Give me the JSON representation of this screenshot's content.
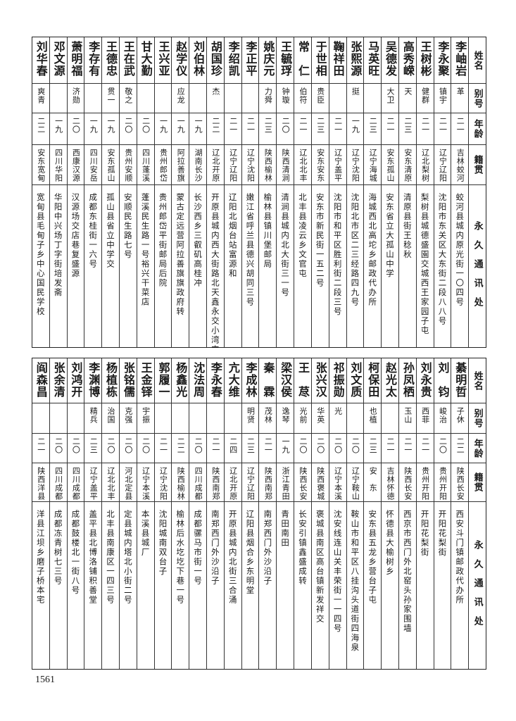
{
  "header": {
    "name": "姓名",
    "alias": "别号",
    "age": "年龄",
    "origin": "籍贯",
    "address": "永久通讯处"
  },
  "tables": [
    {
      "rows": [
        {
          "name": "李岫岩",
          "alias": "革",
          "age": "二一",
          "origin": "吉林蛟河",
          "address": "蛟河县城内原光街一〇四号"
        },
        {
          "name": "李永聚",
          "alias": "镇宇",
          "age": "二一",
          "origin": "辽宁辽阳",
          "address": "沈阳市东关区大东街二段八八号"
        },
        {
          "name": "王树彬",
          "alias": "健群",
          "age": "二一",
          "origin": "辽北梨树",
          "address": "梨树县城德盛園交城西王家园子屯"
        },
        {
          "name": "高秀嵘",
          "alias": "天",
          "age": "二三",
          "origin": "安东清原",
          "address": "清原县街王稔秋"
        },
        {
          "name": "吴德发",
          "alias": "大卫",
          "age": "二一",
          "origin": "安东孤山",
          "address": "安东省立大孤山中学"
        },
        {
          "name": "马英旺",
          "alias": "",
          "age": "二三",
          "origin": "辽宁海城",
          "address": "海城西北高坨乡邮政代办所"
        },
        {
          "name": "张熙源",
          "alias": "挺",
          "age": "一九",
          "origin": "辽宁沈阳",
          "address": "沈阳北市区二三经路四九号"
        },
        {
          "name": "鞠祥田",
          "alias": "",
          "age": "二一",
          "origin": "辽宁盖平",
          "address": "沈阳市和平区胜利街二段三号"
        },
        {
          "name": "于世相",
          "alias": "贵臣",
          "age": "二三",
          "origin": "安东安东",
          "address": "安东市新民街一五二号"
        },
        {
          "name": "常　仁",
          "alias": "伯符",
          "age": "二一",
          "origin": "辽北北丰",
          "address": "北丰县凌云乡文官屯"
        },
        {
          "name": "王毓琈",
          "alias": "钟璇",
          "age": "二〇",
          "origin": "陕西清涧",
          "address": "清涧县城内北大街三一号"
        },
        {
          "name": "姚庆元",
          "alias": "力舜",
          "age": "二三",
          "origin": "陕西榆林",
          "address": "榆林县镇川堡邮局"
        },
        {
          "name": "李正平",
          "alias": "",
          "age": "二一",
          "origin": "辽宁沈阳",
          "address": "嫩江省呼兰县德兴胡同三号"
        },
        {
          "name": "李绍凯",
          "alias": "",
          "age": "二一",
          "origin": "辽宁辽阳",
          "address": "辽阳北烟台站富源和"
        },
        {
          "name": "胡国珍",
          "alias": "杰",
          "age": "二二",
          "origin": "辽北开原",
          "address": "开原县城内西大街路北天鑫永交小湾屯"
        },
        {
          "name": "刘伯林",
          "alias": "",
          "age": "一九",
          "origin": "湖南长沙",
          "address": "长沙西乡三叡矶高桂冲"
        },
        {
          "name": "赵学仪",
          "alias": "应龙",
          "age": "一九",
          "origin": "阿拉善旗",
          "address": "蒙古定远营阿拉善旗旗政府转"
        },
        {
          "name": "王兴亚",
          "alias": "",
          "age": "一九",
          "origin": "贵州郎岱",
          "address": "贵州郎岱平街邮局后院"
        },
        {
          "name": "甘大勤",
          "alias": "",
          "age": "二〇",
          "origin": "四川蓬溪",
          "address": "蓬溪民生路一号裕兴干菜店"
        },
        {
          "name": "王在武",
          "alias": "敬之",
          "age": "二〇",
          "origin": "贵州安顺",
          "address": "安顺民生路七号"
        },
        {
          "name": "王德忠",
          "alias": "贯一",
          "age": "一九",
          "origin": "安东孤山",
          "address": "孤山县省立中学交"
        },
        {
          "name": "李存有",
          "alias": "",
          "age": "一九",
          "origin": "四川安岳",
          "address": "成都东桂街一六号"
        },
        {
          "name": "萧明福",
          "alias": "济勋",
          "age": "二〇",
          "origin": "西康汉源",
          "address": "汉源场交店巷复盛源"
        },
        {
          "name": "邓文源",
          "alias": "",
          "age": "一九",
          "origin": "四川华阳",
          "address": "华阳中兴场丁字街培发斋"
        },
        {
          "name": "刘华春",
          "alias": "爽青",
          "age": "二二",
          "origin": "安东宽甸",
          "address": "宽甸县毛甸子乡中心国民学校"
        }
      ]
    },
    {
      "rows": [
        {
          "name": "綦明哲",
          "alias": "子休",
          "age": "二二",
          "origin": "陕西长安",
          "address": "西安斗门镇邮政代办所"
        },
        {
          "name": "刘　钧",
          "alias": "峻治",
          "age": "二〇",
          "origin": "贵州开阳",
          "address": "开阳花梨街"
        },
        {
          "name": "刘永贵",
          "alias": "西菲",
          "age": "二一",
          "origin": "贵州开阳",
          "address": "开阳花梨街"
        },
        {
          "name": "孙凤栖",
          "alias": "玉山",
          "age": "二一",
          "origin": "陕西长安",
          "address": "西京市西门外北窑头孙家围墙"
        },
        {
          "name": "赵光太",
          "alias": "",
          "age": "二一",
          "origin": "吉林怀德",
          "address": "怀德县大榆树乡"
        },
        {
          "name": "柯保田",
          "alias": "也植",
          "age": "二三",
          "origin": "安　东",
          "address": "安东县五龙乡营台子屯"
        },
        {
          "name": "刘文质",
          "alias": "",
          "age": "二〇",
          "origin": "辽宁鞍山",
          "address": "鞍山市和平区八挂沟头道街四海泉"
        },
        {
          "name": "祁振勋",
          "alias": "光",
          "age": "二〇",
          "origin": "辽宁本溪",
          "address": "沈安线连山关丰荣街一一四号"
        },
        {
          "name": "张兴汉",
          "alias": "华英",
          "age": "二〇",
          "origin": "陕西褒城",
          "address": "褒城县南区高台镇新发祥交"
        },
        {
          "name": "王　荩",
          "alias": "光前",
          "age": "二〇",
          "origin": "陕西长安",
          "address": "长安引镇鑫盛成转"
        },
        {
          "name": "梁汉侯",
          "alias": "逸琴",
          "age": "一九",
          "origin": "浙江青田",
          "address": "青田南田"
        },
        {
          "name": "秦　霖",
          "alias": "茂林",
          "age": "二一",
          "origin": "陕西南郑",
          "address": "南郑西门外沙沿子"
        },
        {
          "name": "李成林",
          "alias": "明贤",
          "age": "二三",
          "origin": "辽宁辽阳",
          "address": "辽阳县烟合乡东明堂"
        },
        {
          "name": "亢大维",
          "alias": "",
          "age": "二四",
          "origin": "辽北开原",
          "address": "开原县城内北街三合涌"
        },
        {
          "name": "李永春",
          "alias": "",
          "age": "二一",
          "origin": "陕西南郑",
          "address": "南郑西门外沙沿子"
        },
        {
          "name": "沈法周",
          "alias": "",
          "age": "二〇",
          "origin": "四川成都",
          "address": "成都骡马市街一号"
        },
        {
          "name": "杨鑫光",
          "alias": "",
          "age": "二二",
          "origin": "陕西榆林",
          "address": "榆林后水圪圪下巷一号"
        },
        {
          "name": "郭履一",
          "alias": "",
          "age": "二一",
          "origin": "辽宁沈阳",
          "address": "沈阳城南双台子"
        },
        {
          "name": "王金铎",
          "alias": "宇振",
          "age": "二〇",
          "origin": "辽宁本溪",
          "address": "本溪县城厂"
        },
        {
          "name": "张铭儒",
          "alias": "克强",
          "age": "二〇",
          "origin": "河北定县",
          "address": "定县城内塔北小街二号"
        },
        {
          "name": "杨植栋",
          "alias": "治国",
          "age": "二〇",
          "origin": "辽北北丰",
          "address": "北丰县南康区一四三号"
        },
        {
          "name": "李渊博",
          "alias": "精兵",
          "age": "二三",
          "origin": "辽宁盖平",
          "address": "盖平县北博洛铺积善堂"
        },
        {
          "name": "刘鸿开",
          "alias": "",
          "age": "二〇",
          "origin": "四川成都",
          "address": "成都鼓楼北一街八号"
        },
        {
          "name": "张余清",
          "alias": "",
          "age": "二〇",
          "origin": "四川成都",
          "address": "成都冻青树七三号"
        },
        {
          "name": "阎森昌",
          "alias": "",
          "age": "二一",
          "origin": "陕西洋县",
          "address": "洋县江坝乡磨子桥本宅"
        }
      ]
    }
  ],
  "page_number": "1561"
}
